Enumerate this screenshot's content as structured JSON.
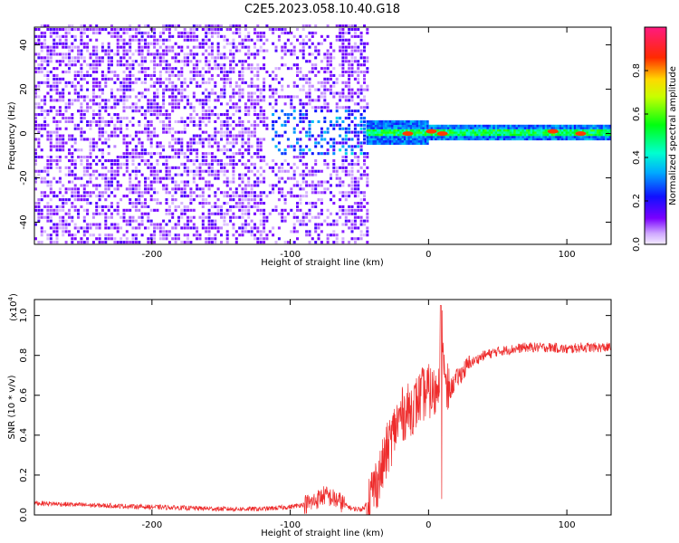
{
  "title": "C2E5.2023.058.10.40.G18",
  "colors": {
    "snr_line": "#ee2c2c",
    "axis": "#000000",
    "background": "#ffffff"
  },
  "chart_data": [
    {
      "type": "heatmap",
      "title": "C2E5.2023.058.10.40.G18",
      "xlabel": "Height of straight line (km)",
      "ylabel": "Frequency (Hz)",
      "xlim": [
        -285,
        132
      ],
      "ylim": [
        -50,
        48
      ],
      "x_ticks": [
        -200,
        -100,
        0,
        100
      ],
      "y_ticks": [
        -40,
        -20,
        0,
        20,
        40
      ],
      "colorbar": {
        "label": "Normalized spectral amplitude",
        "range": [
          0.0,
          1.0
        ],
        "ticks": [
          "0.0",
          "0.2",
          "0.4",
          "0.6",
          "0.8"
        ],
        "tick_values": [
          0.0,
          0.2,
          0.4,
          0.6,
          0.8
        ],
        "colormap": "rainbow (white-violet-blue-cyan-green-yellow-red-magenta)"
      },
      "regions": [
        {
          "name": "noise",
          "x_range": [
            -285,
            -45
          ],
          "freq_range": [
            -50,
            48
          ],
          "amplitude": 0.1
        },
        {
          "name": "transition",
          "x_range": [
            -115,
            -45
          ],
          "freq_range": [
            -10,
            10
          ],
          "amplitude": 0.25
        },
        {
          "name": "signal-band",
          "x_range": [
            -45,
            132
          ],
          "freq_center": 0,
          "freq_halfwidth": 3,
          "amplitude": 0.5
        },
        {
          "name": "peaks",
          "x": [
            -15,
            2,
            10,
            90,
            110
          ],
          "freq": [
            0,
            1,
            0,
            1,
            0
          ],
          "amplitude": 0.85
        }
      ]
    },
    {
      "type": "line",
      "xlabel": "Height of straight line (km)",
      "ylabel": "SNR (10 * v/v)",
      "y_scale_label": "(x10",
      "y_scale_exp": "4",
      "y_scale_close": ")",
      "xlim": [
        -285,
        132
      ],
      "ylim": [
        0.0,
        1.08
      ],
      "x_ticks": [
        -200,
        -100,
        0,
        100
      ],
      "y_ticks": [
        "0.0",
        "0.2",
        "0.4",
        "0.6",
        "0.8",
        "1.0"
      ],
      "y_tick_values": [
        0.0,
        0.2,
        0.4,
        0.6,
        0.8,
        1.0
      ],
      "series": [
        {
          "x": [
            -285,
            -250,
            -200,
            -150,
            -120,
            -100,
            -85,
            -75,
            -65,
            -55,
            -47,
            -42,
            -35,
            -30,
            -25,
            -20,
            -15,
            -10,
            -5,
            0,
            5,
            8,
            10,
            12,
            15,
            20,
            25,
            30,
            40,
            50,
            60,
            70,
            80,
            90,
            100,
            110,
            120,
            132
          ],
          "y": [
            0.06,
            0.05,
            0.04,
            0.03,
            0.03,
            0.04,
            0.06,
            0.1,
            0.07,
            0.03,
            0.03,
            0.1,
            0.2,
            0.32,
            0.42,
            0.5,
            0.52,
            0.55,
            0.6,
            0.62,
            0.6,
            0.75,
            0.95,
            0.62,
            0.62,
            0.68,
            0.72,
            0.76,
            0.8,
            0.82,
            0.83,
            0.84,
            0.84,
            0.84,
            0.83,
            0.84,
            0.84,
            0.84
          ],
          "spike": {
            "x": 9,
            "y_max": 1.05,
            "y_min": 0.08
          }
        }
      ]
    }
  ]
}
